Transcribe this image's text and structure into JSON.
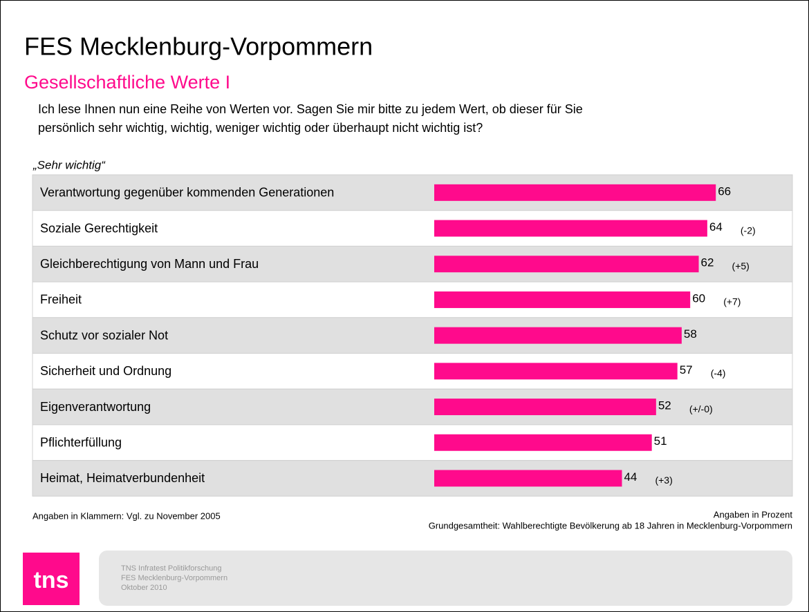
{
  "chart_data": {
    "type": "bar",
    "title": "FES Mecklenburg-Vorpommern",
    "subtitle": "Gesellschaftliche Werte I",
    "question": [
      "Ich lese Ihnen nun eine Reihe von Werten vor. Sagen Sie mir bitte zu jedem Wert, ob dieser für Sie",
      "persönlich sehr wichtig, wichtig, weniger wichtig oder überhaupt nicht wichtig ist?"
    ],
    "label": "„Sehr wichtig“",
    "categories": [
      "Verantwortung gegenüber kommenden Generationen",
      "Soziale Gerechtigkeit",
      "Gleichberechtigung von Mann und Frau",
      "Freiheit",
      "Schutz vor sozialer Not",
      "Sicherheit und Ordnung",
      "Eigenverantwortung",
      "Pflichterfüllung",
      "Heimat, Heimatverbundenheit"
    ],
    "values": [
      66,
      64,
      62,
      60,
      58,
      57,
      52,
      51,
      44
    ],
    "changes": [
      null,
      "(-2)",
      "(+5)",
      "(+7)",
      null,
      "(-4)",
      "(+/-0)",
      null,
      "(+3)"
    ],
    "color": "#ff0a8c",
    "notes": {
      "left": "Angaben in Klammern: Vgl. zu November 2005",
      "right": [
        "Angaben in Prozent",
        "Grundgesamtheit: Wahlberechtigte Bevölkerung ab 18 Jahren in Mecklenburg-Vorpommern"
      ]
    },
    "footer": {
      "logo": "tns",
      "lines": [
        "TNS Infratest Politikforschung",
        "FES Mecklenburg-Vorpommern",
        "Oktober 2010"
      ]
    }
  }
}
